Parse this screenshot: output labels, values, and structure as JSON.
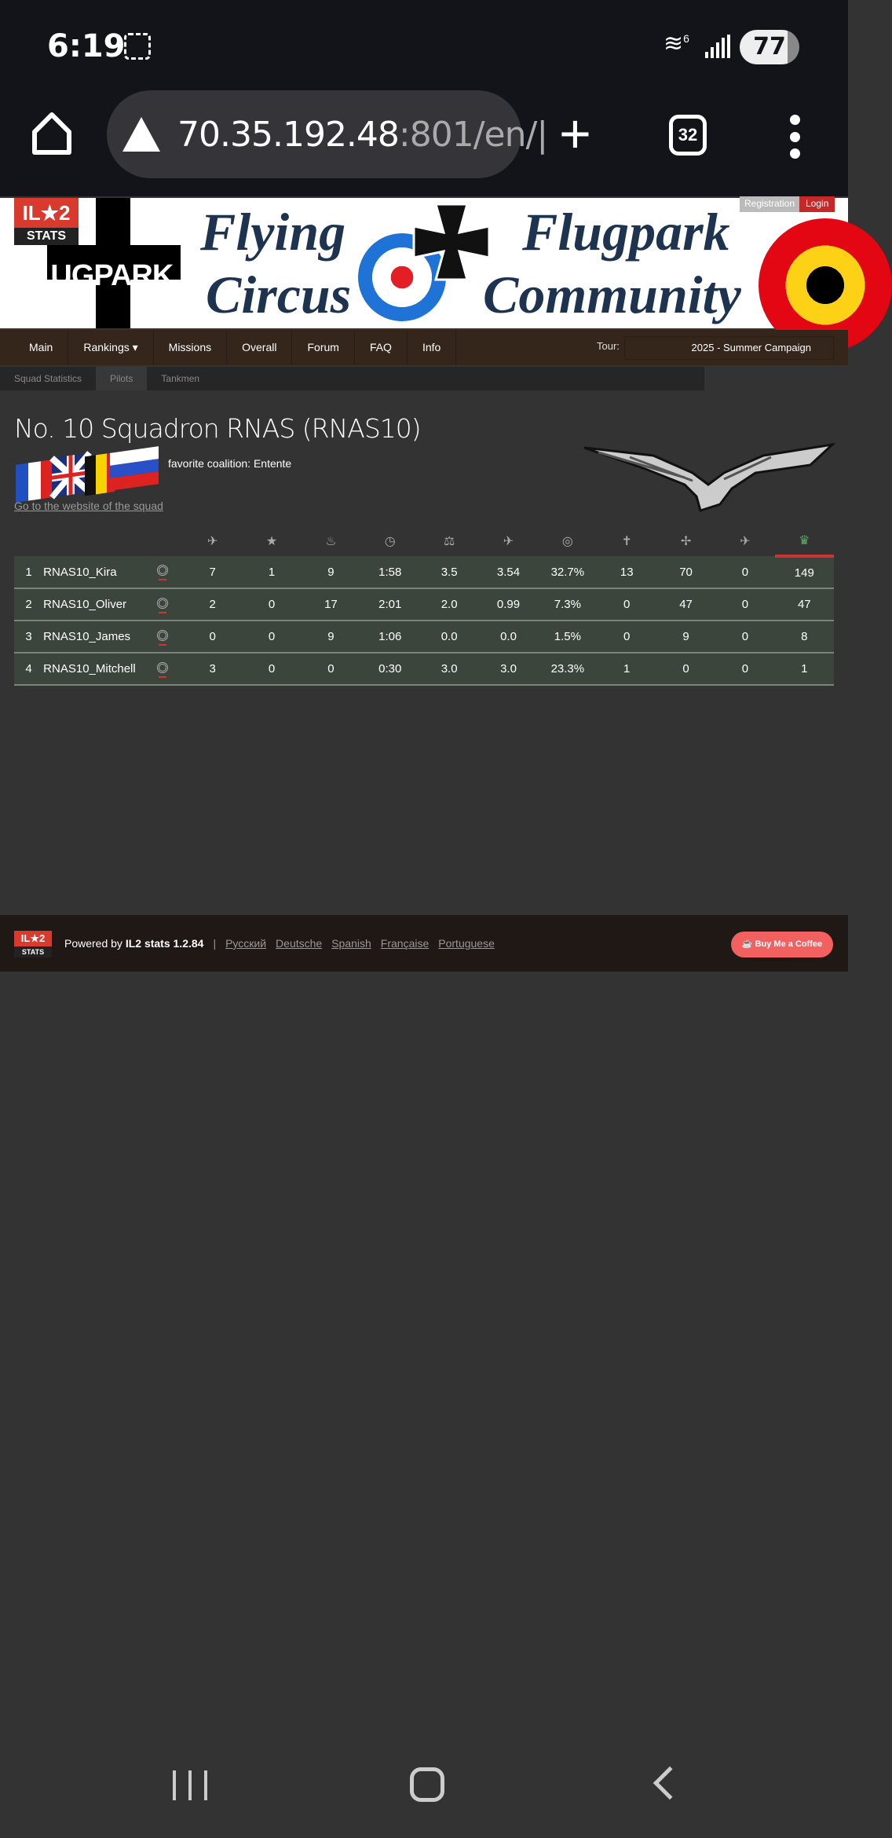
{
  "status_bar": {
    "time": "6:19",
    "battery": "77",
    "wifi_label": "6"
  },
  "browser": {
    "url_main": "70.35.192.48",
    "url_rest": ":801/en/|",
    "tab_count": "32"
  },
  "banner": {
    "logo_top": "IL★2",
    "logo_bottom": "STATS",
    "left_text": "FLUGPARK",
    "line1a": "Flying",
    "line1b": "Circus",
    "line2a": "Flugpark",
    "line2b": "Community",
    "registration": "Registration",
    "login": "Login"
  },
  "nav": {
    "items": [
      "Main",
      "Rankings ▾",
      "Missions",
      "Overall",
      "Forum",
      "FAQ",
      "Info"
    ],
    "tour_label": "Tour:",
    "tour_value": "2025 - Summer Campaign"
  },
  "subnav": {
    "items": [
      "Squad Statistics",
      "Pilots",
      "Tankmen"
    ],
    "active": "Pilots"
  },
  "squad": {
    "title": "No. 10 Squadron RNAS (RNAS10)",
    "coalition": "favorite coalition: Entente",
    "website_link": "Go to the website of the squad"
  },
  "table": {
    "header_icons": [
      "aircraft-kills-icon",
      "star-icon",
      "fire-icon",
      "clock-icon",
      "balance-icon",
      "aircraft-ratio-icon",
      "target-icon",
      "light-aircraft-icon",
      "aircraft-icon",
      "bomber-icon",
      "trophy-icon"
    ],
    "rows": [
      {
        "rank": "1",
        "name": "RNAS10_Kira",
        "values": [
          "7",
          "1",
          "9",
          "1:58",
          "3.5",
          "3.54",
          "32.7%",
          "13",
          "70",
          "0",
          "149"
        ]
      },
      {
        "rank": "2",
        "name": "RNAS10_Oliver",
        "values": [
          "2",
          "0",
          "17",
          "2:01",
          "2.0",
          "0.99",
          "7.3%",
          "0",
          "47",
          "0",
          "47"
        ]
      },
      {
        "rank": "3",
        "name": "RNAS10_James",
        "values": [
          "0",
          "0",
          "9",
          "1:06",
          "0.0",
          "0.0",
          "1.5%",
          "0",
          "9",
          "0",
          "8"
        ]
      },
      {
        "rank": "4",
        "name": "RNAS10_Mitchell",
        "values": [
          "3",
          "0",
          "0",
          "0:30",
          "3.0",
          "3.0",
          "23.3%",
          "1",
          "0",
          "0",
          "1"
        ]
      }
    ]
  },
  "footer": {
    "logo_top": "IL★2",
    "logo_bottom": "STATS",
    "powered_prefix": "Powered by ",
    "powered_brand": "IL2 stats 1.2.84",
    "separator": "|",
    "languages": [
      "Русский",
      "Deutsche",
      "Spanish",
      "Française",
      "Portuguese"
    ],
    "coffee": "Buy Me a Coffee"
  },
  "colors": {
    "nav_bg": "#35261c",
    "row_bg": "#3c453c",
    "page_bg": "#333333",
    "accent_red": "#d93a2e",
    "coffee": "#f26060"
  }
}
